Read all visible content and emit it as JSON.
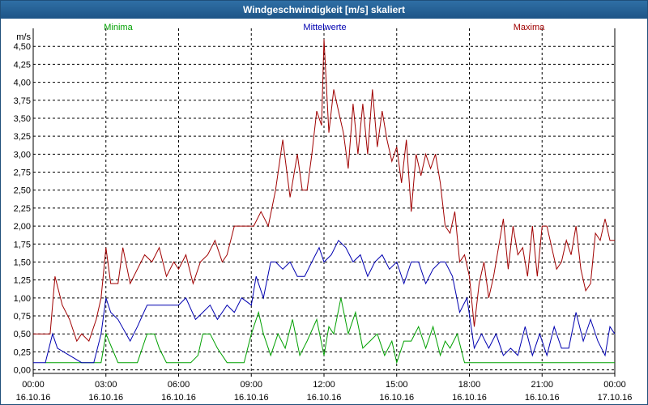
{
  "window": {
    "title": "Windgeschwindigkeit [m/s] skaliert"
  },
  "colors": {
    "minima": "#00a000",
    "mittel": "#0000b0",
    "maxima": "#a00000",
    "grid": "#000000",
    "titlebar": "#1d5487"
  },
  "chart_data": {
    "type": "line",
    "title": "Windgeschwindigkeit [m/s] skaliert",
    "ylabel": "m/s",
    "xlabel": "",
    "ylim": [
      -0.05,
      4.75
    ],
    "xlim": [
      0,
      24
    ],
    "grid": true,
    "legend_placement": "top",
    "y_ticks": [
      "0,00",
      "0,25",
      "0,50",
      "0,75",
      "1,00",
      "1,25",
      "1,50",
      "1,75",
      "2,00",
      "2,25",
      "2,50",
      "2,75",
      "3,00",
      "3,25",
      "3,50",
      "3,75",
      "4,00",
      "4,25",
      "4,50"
    ],
    "x_ticks": [
      {
        "time": "00:00",
        "date": "16.10.16"
      },
      {
        "time": "03:00",
        "date": "16.10.16"
      },
      {
        "time": "06:00",
        "date": "16.10.16"
      },
      {
        "time": "09:00",
        "date": "16.10.16"
      },
      {
        "time": "12:00",
        "date": "16.10.16"
      },
      {
        "time": "15:00",
        "date": "16.10.16"
      },
      {
        "time": "18:00",
        "date": "16.10.16"
      },
      {
        "time": "21:00",
        "date": "16.10.16"
      },
      {
        "time": "00:00",
        "date": "17.10.16"
      }
    ],
    "series": [
      {
        "name": "Minima",
        "color": "#00a000",
        "x": [
          0.5,
          0.8,
          1.0,
          2.5,
          2.8,
          3.0,
          3.5,
          3.7,
          4.0,
          4.3,
          4.7,
          5.0,
          5.2,
          5.5,
          6.0,
          6.5,
          6.8,
          7.0,
          7.3,
          7.6,
          8.0,
          8.5,
          8.7,
          9.0,
          9.3,
          9.5,
          9.8,
          10.1,
          10.4,
          10.7,
          11.0,
          11.3,
          11.7,
          12.0,
          12.2,
          12.4,
          12.7,
          13.0,
          13.3,
          13.6,
          13.9,
          14.2,
          14.5,
          14.8,
          15.0,
          15.3,
          15.6,
          15.9,
          16.2,
          16.5,
          16.8,
          17.0,
          17.2,
          17.5,
          17.8,
          18.0,
          19.0,
          20.0,
          21.0,
          22.0,
          23.0,
          24.0
        ],
        "y": [
          0.1,
          0.1,
          0.1,
          0.1,
          0.1,
          0.5,
          0.1,
          0.1,
          0.1,
          0.1,
          0.5,
          0.5,
          0.3,
          0.1,
          0.1,
          0.1,
          0.2,
          0.5,
          0.5,
          0.3,
          0.1,
          0.1,
          0.1,
          0.5,
          0.8,
          0.5,
          0.2,
          0.5,
          0.3,
          0.7,
          0.2,
          0.4,
          0.7,
          0.2,
          0.6,
          0.5,
          1.0,
          0.5,
          0.8,
          0.3,
          0.4,
          0.5,
          0.2,
          0.4,
          0.1,
          0.4,
          0.4,
          0.6,
          0.3,
          0.6,
          0.2,
          0.4,
          0.3,
          0.5,
          0.1,
          0.1,
          0.1,
          0.1,
          0.1,
          0.1,
          0.1,
          0.1
        ]
      },
      {
        "name": "Mittelwerte",
        "color": "#0000b0",
        "x": [
          0.0,
          0.5,
          0.8,
          1.0,
          1.5,
          2.0,
          2.5,
          2.8,
          3.0,
          3.2,
          3.5,
          4.0,
          4.3,
          4.7,
          5.0,
          5.2,
          5.5,
          6.0,
          6.3,
          6.7,
          7.0,
          7.3,
          7.6,
          8.0,
          8.3,
          8.6,
          9.0,
          9.2,
          9.5,
          9.8,
          10.0,
          10.3,
          10.6,
          10.9,
          11.2,
          11.5,
          11.8,
          12.0,
          12.3,
          12.6,
          12.9,
          13.2,
          13.5,
          13.8,
          14.1,
          14.4,
          14.7,
          15.0,
          15.3,
          15.6,
          15.9,
          16.2,
          16.5,
          16.8,
          17.0,
          17.3,
          17.6,
          17.9,
          18.2,
          18.5,
          18.8,
          19.1,
          19.4,
          19.7,
          20.0,
          20.3,
          20.6,
          20.9,
          21.2,
          21.5,
          21.8,
          22.1,
          22.4,
          22.7,
          23.0,
          23.3,
          23.6,
          23.8,
          24.0
        ],
        "y": [
          0.1,
          0.1,
          0.5,
          0.3,
          0.2,
          0.1,
          0.1,
          0.5,
          1.0,
          0.8,
          0.7,
          0.4,
          0.6,
          0.9,
          0.9,
          0.9,
          0.9,
          0.9,
          1.0,
          0.7,
          0.8,
          0.9,
          0.7,
          0.9,
          0.8,
          1.0,
          0.9,
          1.3,
          1.0,
          1.5,
          1.5,
          1.4,
          1.5,
          1.3,
          1.3,
          1.5,
          1.7,
          1.5,
          1.6,
          1.8,
          1.7,
          1.5,
          1.6,
          1.3,
          1.5,
          1.6,
          1.4,
          1.5,
          1.2,
          1.5,
          1.5,
          1.2,
          1.4,
          1.5,
          1.5,
          1.3,
          0.8,
          1.0,
          0.3,
          0.5,
          0.3,
          0.5,
          0.2,
          0.3,
          0.2,
          0.6,
          0.2,
          0.5,
          0.2,
          0.6,
          0.3,
          0.3,
          0.8,
          0.4,
          0.7,
          0.4,
          0.2,
          0.6,
          0.5
        ]
      },
      {
        "name": "Maxima",
        "color": "#a00000",
        "x": [
          0.0,
          0.7,
          0.9,
          1.2,
          1.5,
          1.8,
          2.0,
          2.3,
          2.6,
          2.8,
          3.0,
          3.2,
          3.5,
          3.7,
          4.0,
          4.3,
          4.6,
          4.9,
          5.2,
          5.5,
          5.8,
          6.0,
          6.3,
          6.6,
          6.9,
          7.2,
          7.5,
          7.8,
          8.0,
          8.3,
          8.6,
          8.9,
          9.1,
          9.4,
          9.7,
          10.0,
          10.3,
          10.6,
          10.9,
          11.1,
          11.3,
          11.5,
          11.7,
          11.9,
          12.0,
          12.2,
          12.4,
          12.6,
          12.8,
          13.0,
          13.2,
          13.4,
          13.6,
          13.8,
          14.0,
          14.2,
          14.4,
          14.6,
          14.8,
          15.0,
          15.2,
          15.4,
          15.6,
          15.8,
          16.0,
          16.2,
          16.4,
          16.6,
          16.8,
          17.0,
          17.2,
          17.4,
          17.6,
          17.8,
          18.0,
          18.2,
          18.4,
          18.6,
          18.8,
          19.0,
          19.2,
          19.4,
          19.6,
          19.8,
          20.0,
          20.2,
          20.4,
          20.6,
          20.8,
          21.0,
          21.2,
          21.4,
          21.6,
          21.8,
          22.0,
          22.2,
          22.4,
          22.6,
          22.8,
          23.0,
          23.2,
          23.4,
          23.6,
          23.8,
          24.0
        ],
        "y": [
          0.5,
          0.5,
          1.3,
          0.9,
          0.7,
          0.4,
          0.5,
          0.4,
          0.7,
          1.0,
          1.7,
          1.2,
          1.2,
          1.7,
          1.2,
          1.4,
          1.6,
          1.5,
          1.7,
          1.3,
          1.5,
          1.4,
          1.6,
          1.2,
          1.5,
          1.6,
          1.8,
          1.5,
          1.6,
          2.0,
          2.0,
          2.0,
          2.0,
          2.2,
          2.0,
          2.5,
          3.2,
          2.4,
          3.0,
          2.5,
          2.5,
          3.0,
          3.6,
          3.4,
          4.6,
          3.3,
          3.9,
          3.6,
          3.3,
          2.8,
          3.7,
          3.0,
          3.7,
          3.0,
          3.9,
          3.1,
          3.6,
          3.2,
          2.9,
          3.1,
          2.6,
          3.2,
          2.2,
          3.0,
          2.7,
          3.0,
          2.8,
          3.0,
          2.6,
          2.0,
          1.9,
          2.2,
          1.5,
          1.6,
          1.3,
          0.6,
          1.2,
          1.5,
          1.0,
          1.3,
          1.7,
          2.1,
          1.4,
          2.0,
          1.6,
          1.7,
          1.3,
          2.0,
          1.3,
          2.0,
          2.0,
          1.7,
          1.4,
          1.5,
          1.8,
          1.6,
          2.0,
          1.4,
          1.1,
          1.2,
          1.9,
          1.8,
          2.1,
          1.8,
          1.8
        ]
      }
    ]
  }
}
